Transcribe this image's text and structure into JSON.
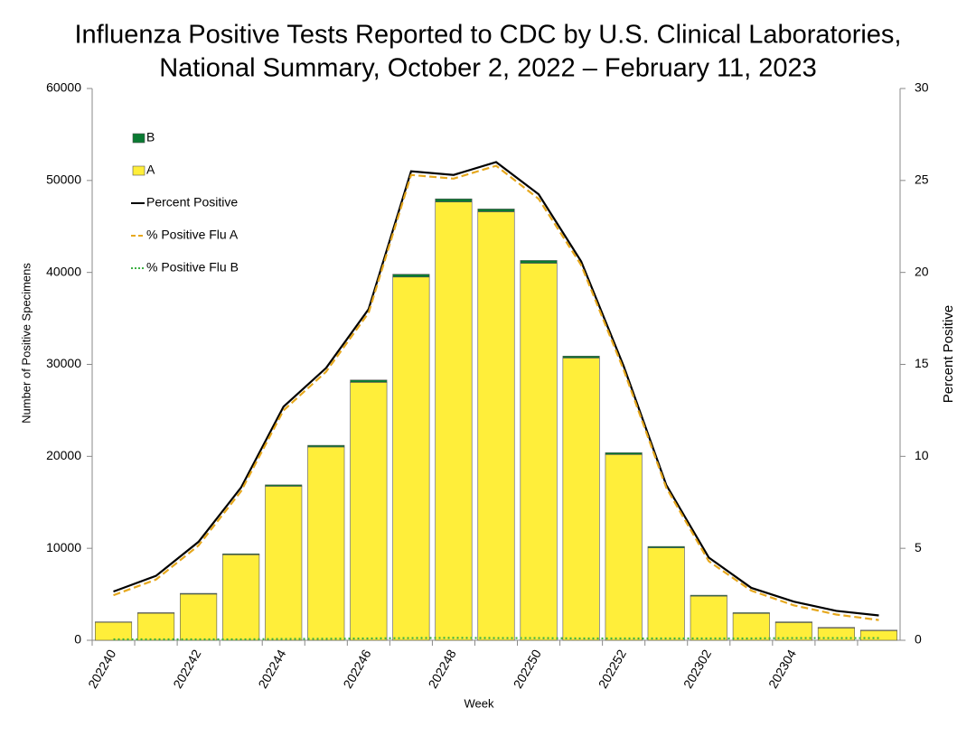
{
  "chart_data": {
    "type": "combo",
    "title": [
      "Influenza Positive Tests Reported to CDC by U.S. Clinical Laboratories,",
      "National Summary, October 2, 2022 – February 11, 2023"
    ],
    "x_label": "Week",
    "y_label": "Number of Positive Specimens",
    "y2_label": "Percent Positive",
    "categories": [
      "202240",
      null,
      "202242",
      null,
      "202244",
      null,
      "202246",
      null,
      "202248",
      null,
      "202250",
      null,
      "202252",
      null,
      "202302",
      null,
      "202304",
      null,
      null
    ],
    "ylim": [
      0,
      60000
    ],
    "yticks": [
      0,
      10000,
      20000,
      30000,
      40000,
      50000,
      60000
    ],
    "y2lim": [
      0,
      30
    ],
    "y2ticks": [
      0,
      5,
      10,
      15,
      20,
      25,
      30
    ],
    "legend": "top-left",
    "series": [
      {
        "name": "B",
        "type": "bar",
        "color": "#0a7a32",
        "values": [
          40,
          60,
          80,
          100,
          150,
          180,
          250,
          300,
          330,
          300,
          300,
          200,
          200,
          150,
          100,
          80,
          70,
          60,
          50
        ]
      },
      {
        "name": "A",
        "type": "bar",
        "color": "#ffee3a",
        "values": [
          1960,
          2940,
          5020,
          9300,
          16750,
          21020,
          28050,
          39500,
          47670,
          46600,
          41000,
          30700,
          20200,
          10050,
          4800,
          2920,
          1930,
          1340,
          1050
        ]
      },
      {
        "name": "Percent Positive",
        "type": "line",
        "axis": "y2",
        "style": "solid",
        "color": "#000000",
        "values": [
          2.65,
          3.5,
          5.35,
          8.3,
          12.7,
          14.8,
          18.0,
          25.5,
          25.3,
          26.0,
          24.25,
          20.6,
          14.9,
          8.45,
          4.5,
          2.85,
          2.1,
          1.6,
          1.35
        ]
      },
      {
        "name": "% Positive Flu A",
        "type": "line",
        "axis": "y2",
        "style": "dashed",
        "color": "#e6a81e",
        "values": [
          2.45,
          3.3,
          5.15,
          8.1,
          12.5,
          14.6,
          17.8,
          25.3,
          25.1,
          25.8,
          24.0,
          20.4,
          14.7,
          8.3,
          4.3,
          2.7,
          1.9,
          1.4,
          1.1
        ]
      },
      {
        "name": "% Positive Flu B",
        "type": "line",
        "axis": "y2",
        "style": "dotted",
        "color": "#3cb043",
        "values": [
          0.05,
          0.05,
          0.05,
          0.05,
          0.07,
          0.08,
          0.1,
          0.12,
          0.13,
          0.12,
          0.12,
          0.1,
          0.1,
          0.1,
          0.1,
          0.1,
          0.12,
          0.12,
          0.12
        ]
      }
    ]
  }
}
